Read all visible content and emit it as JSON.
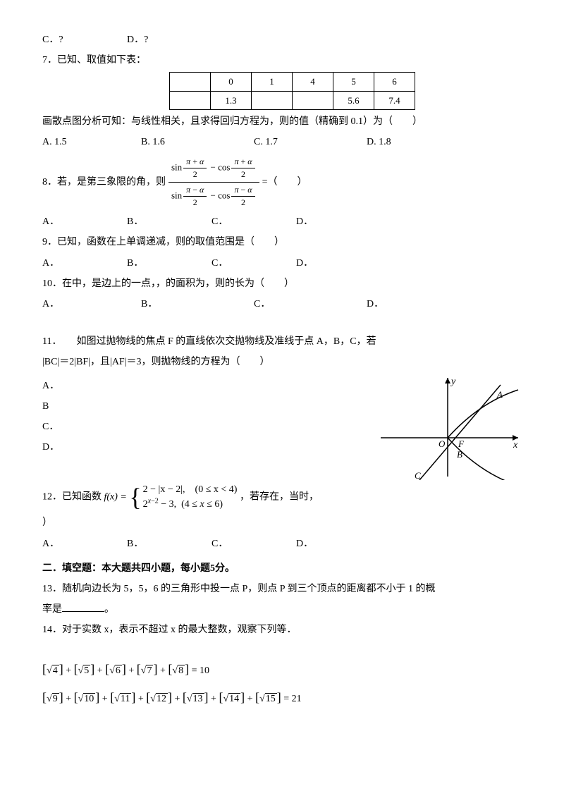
{
  "q6": {
    "optC": "C．?",
    "optD": "D．?"
  },
  "q7": {
    "stem": "7．已知、取值如下表：",
    "table": {
      "row1": [
        "",
        "0",
        "1",
        "4",
        "5",
        "6"
      ],
      "row2": [
        "",
        "1.3",
        "",
        "",
        "5.6",
        "7.4"
      ]
    },
    "post": "画散点图分析可知：与线性相关，且求得回归方程为，则的值（精确到 0.1）为（　　）",
    "opts": {
      "A": "A. 1.5",
      "B": "B. 1.6",
      "C": "C. 1.7",
      "D": "D. 1.8"
    }
  },
  "q8": {
    "pre": "8．若，是第三象限的角，则",
    "post": " =（　　）",
    "frac": {
      "numL": "sin",
      "numArgN": "π + α",
      "numArgD": "2",
      "midOp": " − cos",
      "denL": "sin",
      "denArgN": "π − α",
      "denArgD": "2"
    },
    "opts": {
      "A": "A．",
      "B": "B．",
      "C": "C．",
      "D": "D．"
    }
  },
  "q9": {
    "stem": "9．已知，函数在上单调递减，则的取值范围是（　　）",
    "opts": {
      "A": "A．",
      "B": "B．",
      "C": "C．",
      "D": "D．"
    }
  },
  "q10": {
    "stem": "10．在中，是边上的一点，，的面积为，则的长为（　　）",
    "opts": {
      "A": "A．",
      "B": "B．",
      "C": "C．",
      "D": "D．"
    }
  },
  "q11": {
    "stem1": "11．　　如图过抛物线的焦点 F 的直线依次交抛物线及准线于点 A，B，C，若",
    "stem2": "|BC|＝2|BF|，且|AF|＝3，则抛物线的方程为（　　）",
    "opts": {
      "A": "A．",
      "B": "B",
      "C": "C．",
      "D": "D．"
    },
    "fig": {
      "labels": {
        "y": "y",
        "x": "x",
        "O": "O",
        "F": "F",
        "A": "A",
        "B": "B",
        "C": "C"
      },
      "stroke": "#000000",
      "bg": "#ffffff"
    }
  },
  "q12": {
    "pre": "12．已知函数 ",
    "fx": "f(x) = ",
    "case1": "2 − |x − 2|, (0 ≤ x < 4)",
    "case2": "2^{x−2} − 3, (4 ≤ x ≤ 6)",
    "case2_html": "2<sup style='font-size:10px'>x−2</sup> − 3, (4 ≤ x ≤ 6)",
    "post": "，若存在，当时，",
    "tail": "）",
    "opts": {
      "A": "A．",
      "B": "B．",
      "C": "C．",
      "D": "D．"
    }
  },
  "section2": "二．填空题：本大题共四小题，每小题5分。",
  "q13": {
    "stem": "13．随机向边长为 5，5，6 的三角形中投一点 P，则点 P 到三个顶点的距离都不小于 1 的概率是",
    "period": "。"
  },
  "q14": {
    "stem": "14．对于实数 x，表示不超过 x 的最大整数，观察下列等．",
    "eq1_vals": [
      "4",
      "5",
      "6",
      "7",
      "8"
    ],
    "eq1_rhs": " = 10",
    "eq2_vals": [
      "9",
      "10",
      "11",
      "12",
      "13",
      "14",
      "15"
    ],
    "eq2_rhs": " = 21"
  }
}
